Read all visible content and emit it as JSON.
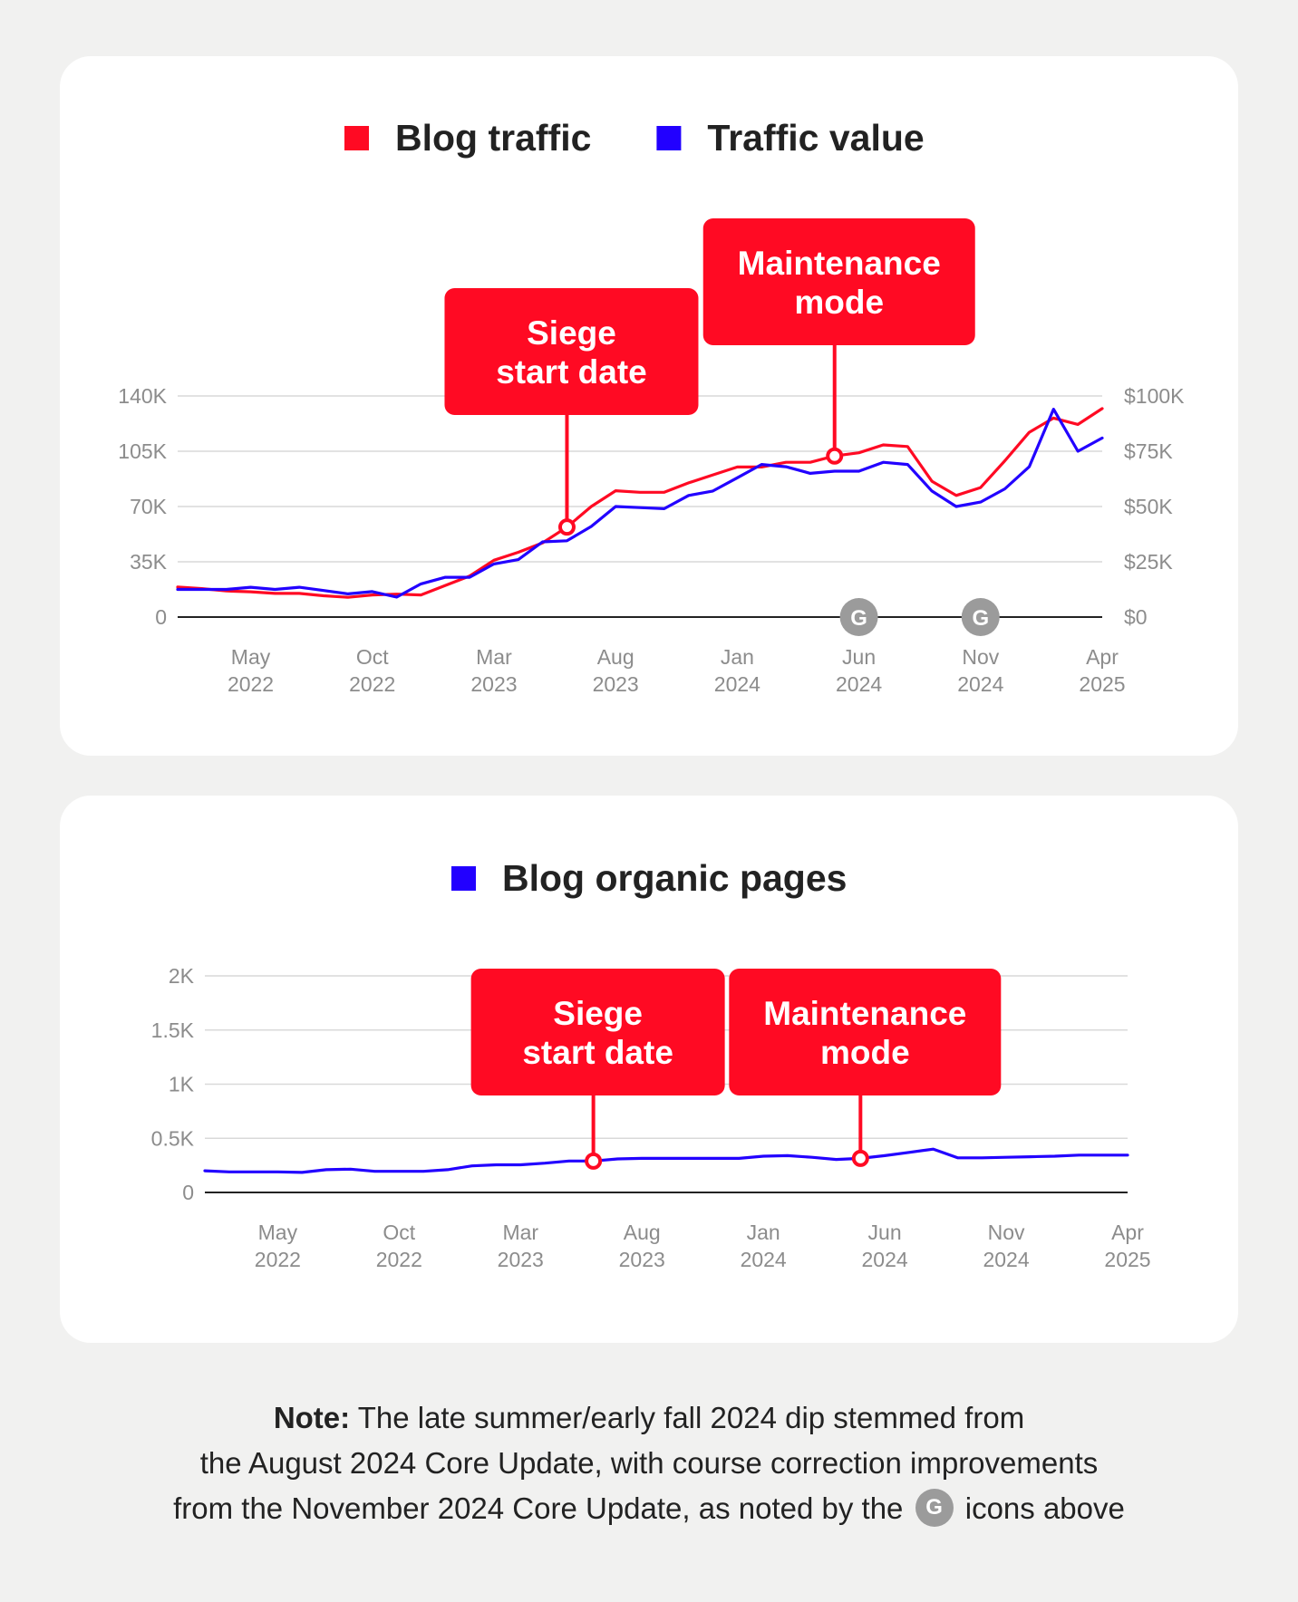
{
  "colors": {
    "blog_traffic": "#ff0a23",
    "traffic_value": "#2200ff",
    "blog_organic_pages": "#2200ff",
    "annotation_bg": "#ff0a23",
    "google_icon_bg": "#9b9b9b",
    "grid": "#d9d9d9",
    "axis": "#222222",
    "tick_text": "#8c8c8c"
  },
  "icons": {
    "google_update": "G"
  },
  "note": {
    "bold": "Note:",
    "line1": "The late summer/early fall 2024 dip stemmed from",
    "line2": "the August 2024 Core Update, with course correction improvements",
    "line3_before": "from the November 2024 Core Update, as noted by the",
    "line3_after": "icons above",
    "icon": "G"
  },
  "chart_data": [
    {
      "type": "line",
      "legend": [
        "Blog traffic",
        "Traffic value"
      ],
      "x_ticks": [
        {
          "month": "2022-05",
          "line1": "May",
          "line2": "2022"
        },
        {
          "month": "2022-10",
          "line1": "Oct",
          "line2": "2022"
        },
        {
          "month": "2023-03",
          "line1": "Mar",
          "line2": "2023"
        },
        {
          "month": "2023-08",
          "line1": "Aug",
          "line2": "2023"
        },
        {
          "month": "2024-01",
          "line1": "Jan",
          "line2": "2024"
        },
        {
          "month": "2024-06",
          "line1": "Jun",
          "line2": "2024"
        },
        {
          "month": "2024-11",
          "line1": "Nov",
          "line2": "2024"
        },
        {
          "month": "2025-04",
          "line1": "Apr",
          "line2": "2025"
        }
      ],
      "y_left": {
        "ticks": [
          0,
          35000,
          70000,
          105000,
          140000
        ],
        "labels": [
          "0",
          "35K",
          "70K",
          "105K",
          "140K"
        ],
        "ylim": [
          0,
          140000
        ]
      },
      "y_right": {
        "ticks": [
          0,
          25000,
          50000,
          75000,
          100000
        ],
        "labels": [
          "$0",
          "$25K",
          "$50K",
          "$75K",
          "$100K"
        ],
        "ylim": [
          0,
          100000
        ]
      },
      "x_range": [
        "2022-02",
        "2025-04"
      ],
      "grid": true,
      "legend_position": "top",
      "series": [
        {
          "name": "Blog traffic",
          "axis": "left",
          "x": [
            "2022-02",
            "2022-03",
            "2022-04",
            "2022-05",
            "2022-06",
            "2022-07",
            "2022-08",
            "2022-09",
            "2022-10",
            "2022-11",
            "2022-12",
            "2023-01",
            "2023-02",
            "2023-03",
            "2023-04",
            "2023-05",
            "2023-06",
            "2023-07",
            "2023-08",
            "2023-09",
            "2023-10",
            "2023-11",
            "2023-12",
            "2024-01",
            "2024-02",
            "2024-03",
            "2024-04",
            "2024-05",
            "2024-06",
            "2024-07",
            "2024-08",
            "2024-09",
            "2024-10",
            "2024-11",
            "2024-12",
            "2025-01",
            "2025-02",
            "2025-03",
            "2025-04"
          ],
          "values": [
            19000,
            18000,
            16500,
            16000,
            15000,
            15000,
            13500,
            12500,
            14000,
            14500,
            14000,
            20000,
            26000,
            36000,
            41000,
            47000,
            57000,
            70000,
            80000,
            79000,
            79000,
            85000,
            90000,
            95000,
            95000,
            98000,
            98000,
            102000,
            104000,
            109000,
            108000,
            86000,
            77000,
            82000,
            99000,
            117000,
            126000,
            122000,
            132000
          ]
        },
        {
          "name": "Traffic value",
          "axis": "right",
          "x": [
            "2022-02",
            "2022-03",
            "2022-04",
            "2022-05",
            "2022-06",
            "2022-07",
            "2022-08",
            "2022-09",
            "2022-10",
            "2022-11",
            "2022-12",
            "2023-01",
            "2023-02",
            "2023-03",
            "2023-04",
            "2023-05",
            "2023-06",
            "2023-07",
            "2023-08",
            "2023-09",
            "2023-10",
            "2023-11",
            "2023-12",
            "2024-01",
            "2024-02",
            "2024-03",
            "2024-04",
            "2024-05",
            "2024-06",
            "2024-07",
            "2024-08",
            "2024-09",
            "2024-10",
            "2024-11",
            "2024-12",
            "2025-01",
            "2025-02",
            "2025-03",
            "2025-04"
          ],
          "values": [
            12500,
            12500,
            12500,
            13500,
            12500,
            13500,
            12000,
            10500,
            11500,
            9000,
            15000,
            18000,
            18000,
            24000,
            26000,
            34000,
            34500,
            41000,
            50000,
            49500,
            49000,
            55000,
            57000,
            63000,
            69000,
            68000,
            65000,
            66000,
            66000,
            70000,
            69000,
            57000,
            50000,
            52000,
            58000,
            68000,
            94000,
            75000,
            81000
          ]
        }
      ],
      "annotations": [
        {
          "line1": "Siege",
          "line2": "start date",
          "month": "2023-06"
        },
        {
          "line1": "Maintenance",
          "line2": "mode",
          "month": "2024-05"
        }
      ],
      "google_updates": [
        {
          "month": "2024-06",
          "label": "G"
        },
        {
          "month": "2024-11",
          "label": "G"
        }
      ]
    },
    {
      "type": "line",
      "legend": [
        "Blog organic pages"
      ],
      "x_ticks": [
        {
          "month": "2022-05",
          "line1": "May",
          "line2": "2022"
        },
        {
          "month": "2022-10",
          "line1": "Oct",
          "line2": "2022"
        },
        {
          "month": "2023-03",
          "line1": "Mar",
          "line2": "2023"
        },
        {
          "month": "2023-08",
          "line1": "Aug",
          "line2": "2023"
        },
        {
          "month": "2024-01",
          "line1": "Jan",
          "line2": "2024"
        },
        {
          "month": "2024-06",
          "line1": "Jun",
          "line2": "2024"
        },
        {
          "month": "2024-11",
          "line1": "Nov",
          "line2": "2024"
        },
        {
          "month": "2025-04",
          "line1": "Apr",
          "line2": "2025"
        }
      ],
      "y_left": {
        "ticks": [
          0,
          500,
          1000,
          1500,
          2000
        ],
        "labels": [
          "0",
          "0.5K",
          "1K",
          "1.5K",
          "2K"
        ],
        "ylim": [
          0,
          2000
        ]
      },
      "x_range": [
        "2022-02",
        "2025-04"
      ],
      "grid": true,
      "legend_position": "top",
      "series": [
        {
          "name": "Blog organic pages",
          "axis": "left",
          "x": [
            "2022-02",
            "2022-03",
            "2022-04",
            "2022-05",
            "2022-06",
            "2022-07",
            "2022-08",
            "2022-09",
            "2022-10",
            "2022-11",
            "2022-12",
            "2023-01",
            "2023-02",
            "2023-03",
            "2023-04",
            "2023-05",
            "2023-06",
            "2023-07",
            "2023-08",
            "2023-09",
            "2023-10",
            "2023-11",
            "2023-12",
            "2024-01",
            "2024-02",
            "2024-03",
            "2024-04",
            "2024-05",
            "2024-06",
            "2024-07",
            "2024-08",
            "2024-09",
            "2024-10",
            "2024-11",
            "2024-12",
            "2025-01",
            "2025-02",
            "2025-03",
            "2025-04"
          ],
          "values": [
            200,
            190,
            190,
            190,
            185,
            210,
            215,
            195,
            195,
            195,
            210,
            245,
            255,
            255,
            270,
            290,
            290,
            310,
            315,
            315,
            315,
            315,
            315,
            335,
            340,
            325,
            305,
            315,
            340,
            370,
            400,
            320,
            320,
            325,
            330,
            335,
            345,
            345,
            345
          ]
        }
      ],
      "annotations": [
        {
          "line1": "Siege",
          "line2": "start date",
          "month": "2023-06"
        },
        {
          "line1": "Maintenance",
          "line2": "mode",
          "month": "2024-05"
        }
      ]
    }
  ]
}
